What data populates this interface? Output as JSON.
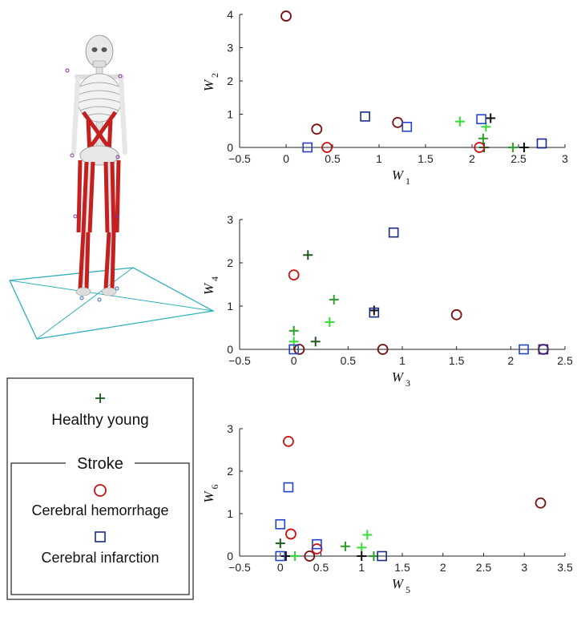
{
  "colors": {
    "dark_green": "#1e5a1e",
    "green": "#2aa02a",
    "light_green": "#33dd33",
    "black": "#111111",
    "red": "#cc1111",
    "dark_red": "#7a1010",
    "blue": "#2244cc",
    "navy": "#1a2a88"
  },
  "legend": {
    "healthy_label": "Healthy young",
    "group_title": "Stroke",
    "hemorrhage_label": "Cerebral hemorrhage",
    "infarction_label": "Cerebral infarction"
  },
  "chart_data": [
    {
      "type": "scatter",
      "xlabel": "W",
      "xlabel_sub": "1",
      "ylabel": "W",
      "ylabel_sub": "2",
      "xlim": [
        -0.5,
        3
      ],
      "ylim": [
        0,
        4
      ],
      "xticks": [
        "-0.5",
        "0",
        "0.5",
        "1",
        "1.5",
        "2",
        "2.5",
        "3"
      ],
      "yticks": [
        "0",
        "1",
        "2",
        "3",
        "4"
      ],
      "series": [
        {
          "group": "healthy",
          "marker": "plus",
          "points": [
            {
              "x": 1.87,
              "y": 0.78,
              "c": "light_green"
            },
            {
              "x": 2.15,
              "y": 0.62,
              "c": "light_green"
            },
            {
              "x": 2.12,
              "y": 0.27,
              "c": "green"
            },
            {
              "x": 2.13,
              "y": 0.0,
              "c": "dark_green"
            },
            {
              "x": 2.2,
              "y": 0.88,
              "c": "black"
            },
            {
              "x": 2.44,
              "y": 0.0,
              "c": "green"
            },
            {
              "x": 2.56,
              "y": 0.0,
              "c": "black"
            }
          ]
        },
        {
          "group": "hemorrhage",
          "marker": "circle",
          "points": [
            {
              "x": 0.0,
              "y": 3.95,
              "c": "dark_red"
            },
            {
              "x": 0.33,
              "y": 0.55,
              "c": "dark_red"
            },
            {
              "x": 0.44,
              "y": 0.0,
              "c": "red"
            },
            {
              "x": 1.2,
              "y": 0.75,
              "c": "dark_red"
            },
            {
              "x": 2.08,
              "y": 0.0,
              "c": "red"
            }
          ]
        },
        {
          "group": "infarction",
          "marker": "square",
          "points": [
            {
              "x": 0.23,
              "y": 0.0,
              "c": "blue"
            },
            {
              "x": 0.85,
              "y": 0.93,
              "c": "navy"
            },
            {
              "x": 1.3,
              "y": 0.62,
              "c": "blue"
            },
            {
              "x": 2.1,
              "y": 0.85,
              "c": "blue"
            },
            {
              "x": 2.75,
              "y": 0.12,
              "c": "navy"
            }
          ]
        }
      ]
    },
    {
      "type": "scatter",
      "xlabel": "W",
      "xlabel_sub": "3",
      "ylabel": "W",
      "ylabel_sub": "4",
      "xlim": [
        -0.5,
        2.5
      ],
      "ylim": [
        0,
        3
      ],
      "xticks": [
        "-0.5",
        "0",
        "0.5",
        "1",
        "1.5",
        "2",
        "2.5"
      ],
      "yticks": [
        "0",
        "1",
        "2",
        "3"
      ],
      "series": [
        {
          "group": "healthy",
          "marker": "plus",
          "points": [
            {
              "x": 0.13,
              "y": 2.18,
              "c": "dark_green"
            },
            {
              "x": 0.37,
              "y": 1.15,
              "c": "green"
            },
            {
              "x": 0.33,
              "y": 0.63,
              "c": "light_green"
            },
            {
              "x": 0.0,
              "y": 0.43,
              "c": "green"
            },
            {
              "x": 0.0,
              "y": 0.18,
              "c": "light_green"
            },
            {
              "x": 0.2,
              "y": 0.18,
              "c": "dark_green"
            },
            {
              "x": 0.74,
              "y": 0.9,
              "c": "black"
            }
          ]
        },
        {
          "group": "hemorrhage",
          "marker": "circle",
          "points": [
            {
              "x": 0.0,
              "y": 1.72,
              "c": "red"
            },
            {
              "x": 0.05,
              "y": 0.0,
              "c": "dark_red"
            },
            {
              "x": 0.82,
              "y": 0.0,
              "c": "dark_red"
            },
            {
              "x": 1.5,
              "y": 0.8,
              "c": "dark_red"
            },
            {
              "x": 2.3,
              "y": 0.0,
              "c": "red"
            }
          ]
        },
        {
          "group": "infarction",
          "marker": "square",
          "points": [
            {
              "x": 0.92,
              "y": 2.7,
              "c": "navy"
            },
            {
              "x": 0.74,
              "y": 0.85,
              "c": "navy"
            },
            {
              "x": 0.0,
              "y": 0.0,
              "c": "blue"
            },
            {
              "x": 2.12,
              "y": 0.0,
              "c": "blue"
            },
            {
              "x": 2.3,
              "y": 0.0,
              "c": "navy"
            }
          ]
        }
      ]
    },
    {
      "type": "scatter",
      "xlabel": "W",
      "xlabel_sub": "5",
      "ylabel": "W",
      "ylabel_sub": "6",
      "xlim": [
        -0.5,
        3.5
      ],
      "ylim": [
        0,
        3
      ],
      "xticks": [
        "-0.5",
        "0",
        "0.5",
        "1",
        "1.5",
        "2",
        "2.5",
        "3",
        "3.5"
      ],
      "yticks": [
        "0",
        "1",
        "2",
        "3"
      ],
      "series": [
        {
          "group": "healthy",
          "marker": "plus",
          "points": [
            {
              "x": 0.0,
              "y": 0.3,
              "c": "dark_green"
            },
            {
              "x": 0.07,
              "y": 0.0,
              "c": "black"
            },
            {
              "x": 0.18,
              "y": 0.0,
              "c": "light_green"
            },
            {
              "x": 0.8,
              "y": 0.23,
              "c": "green"
            },
            {
              "x": 1.0,
              "y": 0.2,
              "c": "light_green"
            },
            {
              "x": 1.07,
              "y": 0.5,
              "c": "light_green"
            },
            {
              "x": 1.0,
              "y": 0.0,
              "c": "black"
            },
            {
              "x": 1.15,
              "y": 0.0,
              "c": "green"
            }
          ]
        },
        {
          "group": "hemorrhage",
          "marker": "circle",
          "points": [
            {
              "x": 0.1,
              "y": 2.7,
              "c": "red"
            },
            {
              "x": 0.13,
              "y": 0.52,
              "c": "red"
            },
            {
              "x": 0.36,
              "y": 0.0,
              "c": "dark_red"
            },
            {
              "x": 0.45,
              "y": 0.17,
              "c": "red"
            },
            {
              "x": 3.2,
              "y": 1.25,
              "c": "dark_red"
            }
          ]
        },
        {
          "group": "infarction",
          "marker": "square",
          "points": [
            {
              "x": 0.1,
              "y": 1.62,
              "c": "blue"
            },
            {
              "x": 0.0,
              "y": 0.75,
              "c": "blue"
            },
            {
              "x": 0.0,
              "y": 0.0,
              "c": "blue"
            },
            {
              "x": 0.45,
              "y": 0.28,
              "c": "blue"
            },
            {
              "x": 1.25,
              "y": 0.0,
              "c": "navy"
            }
          ]
        }
      ]
    }
  ]
}
